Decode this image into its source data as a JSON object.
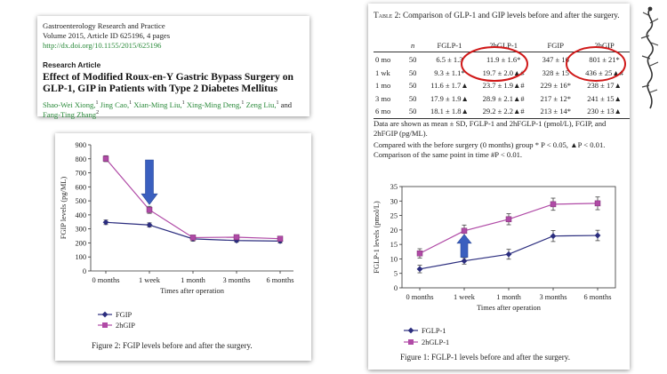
{
  "header": {
    "journal": "Gastroenterology Research and Practice",
    "volume_line": "Volume 2015, Article ID 625196, 4 pages",
    "doi": "http://dx.doi.org/10.1155/2015/625196",
    "article_type": "Research Article",
    "title_line1": "Effect of Modified Roux-en-Y Gastric Bypass Surgery on",
    "title_line2": "GLP-1, GIP in Patients with Type 2 Diabetes Mellitus",
    "authors": [
      {
        "name": "Shao-Wei Xiong,",
        "sup": "1"
      },
      {
        "name": "Jing Cao,",
        "sup": "1"
      },
      {
        "name": "Xian-Ming Liu,",
        "sup": "1"
      },
      {
        "name": "Xing-Ming Deng,",
        "sup": "1"
      },
      {
        "name": "Zeng Liu,",
        "sup": "1"
      },
      {
        "name": "and",
        "sup": ""
      },
      {
        "name": "Fang-Ting Zhang",
        "sup": "2"
      }
    ]
  },
  "table2": {
    "caption_label": "Table 2:",
    "caption_text": "Comparison of GLP-1 and GIP levels before and after the surgery.",
    "headers": [
      "",
      "n",
      "FGLP-1",
      "2hGLP-1",
      "FGIP",
      "2hGIP"
    ],
    "rows": [
      [
        "0 mo",
        "50",
        "6.5 ± 1.3",
        "11.9 ± 1.6*",
        "347 ± 16",
        "801 ± 21*"
      ],
      [
        "1 wk",
        "50",
        "9.3 ± 1.1*",
        "19.7 ± 2.0▲#",
        "328 ± 15",
        "436 ± 25▲#"
      ],
      [
        "1 mo",
        "50",
        "11.6 ± 1.7▲",
        "23.7 ± 1.9▲#",
        "229 ± 16*",
        "238 ± 17▲"
      ],
      [
        "3 mo",
        "50",
        "17.9 ± 1.9▲",
        "28.9 ± 2.1▲#",
        "217 ± 12*",
        "241 ± 15▲"
      ],
      [
        "6 mo",
        "50",
        "18.1 ± 1.8▲",
        "29.2 ± 2.2▲#",
        "213 ± 14*",
        "230 ± 13▲"
      ]
    ],
    "notes": [
      "Data are shown as mean ± SD, FGLP-1 and 2hFGLP-1 (pmol/L), FGIP, and",
      "2hFGIP (pg/ML).",
      "Compared with the before surgery (0 months) group * P < 0.05, ▲P < 0.01.",
      "Comparison of the same point in time #P < 0.01."
    ]
  },
  "figure1": {
    "caption": "Figure 1: FGLP-1 levels before and after the surgery."
  },
  "figure2": {
    "caption": "Figure 2: FGIP levels before and after the surgery."
  },
  "chart_data": [
    {
      "id": "figure2",
      "type": "line",
      "title": "",
      "xlabel": "Times after operation",
      "ylabel": "FGIP levels (pg/ML)",
      "categories": [
        "0 months",
        "1 week",
        "1 month",
        "3 months",
        "6 months"
      ],
      "ylim": [
        0,
        900
      ],
      "yticks": [
        0,
        100,
        200,
        300,
        400,
        500,
        600,
        700,
        800,
        900
      ],
      "series": [
        {
          "name": "FGIP",
          "color": "#2b2d7e",
          "marker": "diamond",
          "values": [
            347,
            328,
            229,
            217,
            213
          ],
          "errors": [
            16,
            15,
            16,
            12,
            14
          ]
        },
        {
          "name": "2hGIP",
          "color": "#b04aa6",
          "marker": "square",
          "values": [
            801,
            436,
            238,
            241,
            230
          ],
          "errors": [
            21,
            25,
            17,
            15,
            13
          ]
        }
      ],
      "legend": "bottom-left",
      "grid": false,
      "annotations": [
        {
          "type": "arrow",
          "category": "1 week",
          "direction": "down",
          "color": "#3a5fbf"
        }
      ]
    },
    {
      "id": "figure1",
      "type": "line",
      "title": "",
      "xlabel": "Times after operation",
      "ylabel": "FGLP-1 levels (pmol/L)",
      "categories": [
        "0 months",
        "1 week",
        "1 month",
        "3 months",
        "6 months"
      ],
      "ylim": [
        0,
        35
      ],
      "yticks": [
        0,
        5,
        10,
        15,
        20,
        25,
        30,
        35
      ],
      "series": [
        {
          "name": "FGLP-1",
          "color": "#2b2d7e",
          "marker": "diamond",
          "values": [
            6.5,
            9.3,
            11.6,
            17.9,
            18.1
          ],
          "errors": [
            1.3,
            1.1,
            1.7,
            1.9,
            1.8
          ]
        },
        {
          "name": "2hGLP-1",
          "color": "#b04aa6",
          "marker": "square",
          "values": [
            11.9,
            19.7,
            23.7,
            28.9,
            29.2
          ],
          "errors": [
            1.6,
            2.0,
            1.9,
            2.1,
            2.2
          ]
        }
      ],
      "legend": "bottom-left",
      "grid": false,
      "annotations": [
        {
          "type": "arrow",
          "category": "1 week",
          "direction": "up",
          "color": "#3a5fbf"
        }
      ]
    }
  ],
  "colors": {
    "highlight_circle": "#d01818",
    "arrow": "#3a5fbf",
    "link_green": "#2a8a3a"
  }
}
